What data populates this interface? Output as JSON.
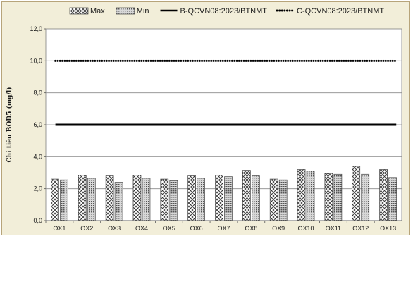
{
  "chart_data": {
    "type": "bar",
    "title": "",
    "xlabel": "",
    "ylabel": "Chỉ tiêu BOD5 (mg/l)",
    "ylim": [
      0,
      12
    ],
    "yticks": [
      "0,0",
      "2,0",
      "4,0",
      "6,0",
      "8,0",
      "10,0",
      "12,0"
    ],
    "grid": true,
    "legend_position": "top",
    "categories": [
      "OX1",
      "OX2",
      "OX3",
      "OX4",
      "OX5",
      "OX6",
      "OX7",
      "OX8",
      "OX9",
      "OX10",
      "OX11",
      "OX12",
      "OX13"
    ],
    "series": [
      {
        "name": "Max",
        "kind": "bar",
        "pattern": "diagonal-cross",
        "values": [
          2.6,
          2.85,
          2.8,
          2.85,
          2.6,
          2.8,
          2.85,
          3.15,
          2.6,
          3.2,
          2.95,
          3.4,
          3.2
        ]
      },
      {
        "name": "Min",
        "kind": "bar",
        "pattern": "dots",
        "values": [
          2.55,
          2.65,
          2.4,
          2.65,
          2.5,
          2.65,
          2.75,
          2.8,
          2.55,
          3.1,
          2.9,
          2.9,
          2.7
        ]
      },
      {
        "name": "B-QCVN08:2023/BTNMT",
        "kind": "line",
        "style": "solid",
        "color": "#000000",
        "value": 6
      },
      {
        "name": "C-QCVN08:2023/BTNMT",
        "kind": "line",
        "style": "dotted",
        "color": "#000000",
        "value": 10
      }
    ],
    "colors": {
      "plot_bg": "#ffffff",
      "frame_bg": "#f2eed9",
      "frame_border": "#b7a47a",
      "grid": "#8c8c8c"
    }
  }
}
